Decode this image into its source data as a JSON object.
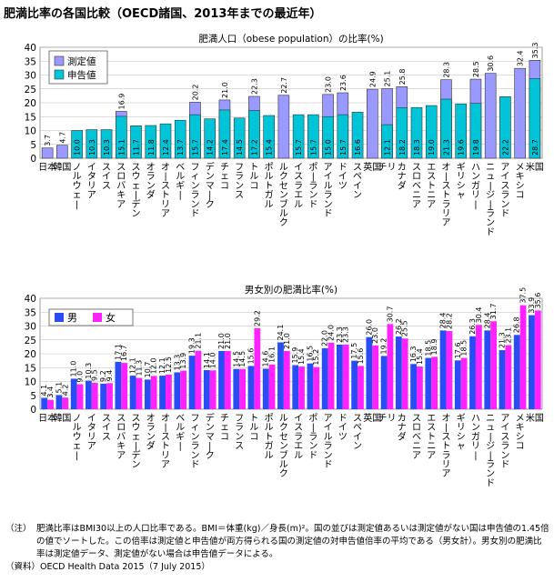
{
  "page_title": "肥満比率の各国比較（OECD諸国、2013年までの最近年）",
  "colors": {
    "measured": "#9999ff",
    "self_report": "#00c5d8",
    "male": "#2a4cf5",
    "female": "#ff22ff"
  },
  "chart_data": [
    {
      "type": "bar",
      "title": "肥満人口（obese population）の比率(%)",
      "ylim": [
        0,
        40
      ],
      "yticks": [
        0,
        5,
        10,
        15,
        20,
        25,
        30,
        35,
        40
      ],
      "grid": true,
      "legend_position": "top-left",
      "categories": [
        "日本",
        "韓国",
        "ノルウェー",
        "イタリア",
        "スイス",
        "スロバキア",
        "スウェーデン",
        "オランダ",
        "オーストリア",
        "ベルギー",
        "フィンランド",
        "デンマーク",
        "チェコ",
        "フランス",
        "トルコ",
        "ポルトガル",
        "ルクセンブルク",
        "イスラエル",
        "ポーランド",
        "アイルランド",
        "ドイツ",
        "スペイン",
        "英国",
        "チリ",
        "カナダ",
        "スロベニア",
        "エストニア",
        "オーストラリア",
        "ギリシャ",
        "ハンガリー",
        "ニュージーランド",
        "アイスランド",
        "メキシコ",
        "米国"
      ],
      "series": [
        {
          "name": "測定値",
          "values": [
            3.7,
            4.7,
            null,
            null,
            null,
            16.9,
            null,
            null,
            null,
            null,
            20.2,
            null,
            21.0,
            null,
            22.3,
            null,
            22.7,
            null,
            null,
            23.0,
            23.6,
            null,
            24.9,
            25.1,
            25.8,
            null,
            null,
            28.3,
            null,
            28.5,
            30.6,
            null,
            32.4,
            35.3
          ]
        },
        {
          "name": "申告値",
          "values": [
            null,
            null,
            10.0,
            10.3,
            10.3,
            15.1,
            11.7,
            11.8,
            12.4,
            13.7,
            15.7,
            14.2,
            17.4,
            14.5,
            17.2,
            15.4,
            null,
            15.7,
            15.7,
            15.0,
            15.7,
            16.6,
            null,
            12.1,
            18.2,
            18.3,
            19.0,
            21.3,
            19.6,
            19.8,
            null,
            22.2,
            null,
            28.7
          ]
        }
      ],
      "bar_labels": [
        "3.7",
        "4.7",
        "10.0",
        "10.3",
        "10.3",
        "16.9",
        "11.7",
        "11.8",
        "12.4",
        "13.7",
        "20.2",
        "14.2",
        "21.0",
        "14.5",
        "22.3",
        "15.4",
        "22.7",
        "15.7",
        "15.7",
        "23.0",
        "23.6",
        "16.6",
        "24.9",
        "25.1",
        "25.8",
        "18.3",
        "19.0",
        "28.3",
        "19.6",
        "28.5",
        "30.6",
        "22.2",
        "32.4",
        "35.3"
      ],
      "inner_labels": [
        "",
        "",
        "",
        "",
        "",
        "15.1",
        "",
        "",
        "",
        "",
        "15.7",
        "",
        "17.4",
        "",
        "17.2",
        "",
        "",
        "",
        "",
        "15.0",
        "15.7",
        "",
        "",
        "12.1",
        "18.2",
        "",
        "",
        "21.3",
        "",
        "19.8",
        "",
        "",
        "",
        "28.7"
      ]
    },
    {
      "type": "bar",
      "title": "男女別の肥満比率(%)",
      "ylim": [
        0,
        40
      ],
      "yticks": [
        0,
        5,
        10,
        15,
        20,
        25,
        30,
        35,
        40
      ],
      "grid": true,
      "legend_position": "top-left",
      "categories": [
        "日本",
        "韓国",
        "ノルウェー",
        "イタリア",
        "スイス",
        "スロバキア",
        "スウェーデン",
        "オランダ",
        "オーストリア",
        "ベルギー",
        "フィンランド",
        "デンマーク",
        "チェコ",
        "フランス",
        "トルコ",
        "ポルトガル",
        "ルクセンブルク",
        "イスラエル",
        "ポーランド",
        "アイルランド",
        "ドイツ",
        "スペイン",
        "英国",
        "チリ",
        "カナダ",
        "スロベニア",
        "エストニア",
        "オーストラリア",
        "ギリシャ",
        "ハンガリー",
        "ニュージーランド",
        "アイスランド",
        "メキシコ",
        "米国"
      ],
      "series": [
        {
          "name": "男",
          "values": [
            4.1,
            5.1,
            11.0,
            10.3,
            9.2,
            17.1,
            12.1,
            10.7,
            12.1,
            13.3,
            19.3,
            14.1,
            21.0,
            14.5,
            15.6,
            14.6,
            24.1,
            15.9,
            16.5,
            22.0,
            23.3,
            17.5,
            26.0,
            19.2,
            26.2,
            16.3,
            18.5,
            28.4,
            17.6,
            26.3,
            28.4,
            21.3,
            26.8,
            33.9
          ]
        },
        {
          "name": "女",
          "values": [
            3.4,
            4.2,
            9.0,
            9.5,
            9.4,
            16.7,
            11.3,
            12.0,
            12.5,
            13.9,
            21.1,
            14.0,
            21.0,
            14.5,
            29.2,
            16.1,
            21.0,
            15.4,
            15.2,
            24.0,
            23.3,
            15.6,
            23.0,
            30.7,
            25.5,
            15.4,
            18.9,
            28.2,
            18.5,
            30.4,
            31.7,
            23.1,
            37.5,
            35.6
          ]
        }
      ]
    }
  ],
  "notes": {
    "label": "（注）",
    "text": "肥満比率はBMI30以上の人口比率である。BMI＝体重(kg)／身長(m)²。国の並びは測定値あるいは測定値がない国は申告値の1.45倍の値でソートした。この倍率は測定値と申告値が両方得られる国の測定値の対申告値倍率の平均である（男女計）。男女別の肥満比率は測定値データ、測定値がない場合は申告値データによる。",
    "source": "（資料）OECD Health Data 2015（7 July 2015）"
  }
}
